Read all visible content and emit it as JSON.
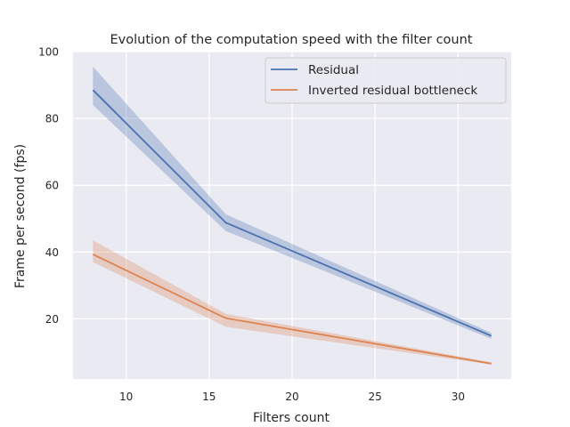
{
  "chart_data": {
    "type": "line",
    "title": "Evolution of the computation speed with the filter count",
    "xlabel": "Filters count",
    "ylabel": "Frame per second (fps)",
    "xlim": [
      6.8,
      33.2
    ],
    "ylim": [
      2,
      100
    ],
    "xticks": [
      10,
      15,
      20,
      25,
      30
    ],
    "yticks": [
      20,
      40,
      60,
      80,
      100
    ],
    "grid": true,
    "legend_position": "top-right",
    "series": [
      {
        "name": "Residual",
        "color": "#4c72b0",
        "x": [
          8,
          16,
          32
        ],
        "y": [
          88.5,
          48.8,
          14.9
        ],
        "ci_low": [
          84.0,
          46.3,
          14.0
        ],
        "ci_high": [
          95.5,
          51.3,
          15.8
        ]
      },
      {
        "name": "Inverted residual bottleneck",
        "color": "#dd8452",
        "x": [
          8,
          16,
          32
        ],
        "y": [
          39.3,
          20.2,
          6.6
        ],
        "ci_low": [
          37.0,
          17.6,
          6.3
        ],
        "ci_high": [
          43.5,
          21.5,
          7.0
        ]
      }
    ]
  }
}
